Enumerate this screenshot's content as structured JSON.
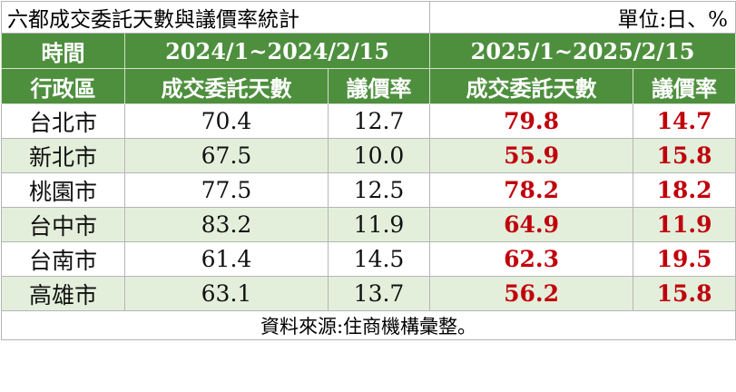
{
  "title": "六都成交委託天數與議價率統計",
  "unit": "單位:日、%",
  "header1": {
    "time": "時間",
    "period_a": "2024/1~2024/2/15",
    "period_b": "2025/1~2025/2/15"
  },
  "header2": {
    "district": "行政區",
    "days_a": "成交委託天數",
    "rate_a": "議價率",
    "days_b": "成交委託天數",
    "rate_b": "議價率"
  },
  "rows": [
    {
      "district": "台北市",
      "days_a": "70.4",
      "rate_a": "12.7",
      "days_b": "79.8",
      "rate_b": "14.7"
    },
    {
      "district": "新北市",
      "days_a": "67.5",
      "rate_a": "10.0",
      "days_b": "55.9",
      "rate_b": "15.8"
    },
    {
      "district": "桃園市",
      "days_a": "77.5",
      "rate_a": "12.5",
      "days_b": "78.2",
      "rate_b": "18.2"
    },
    {
      "district": "台中市",
      "days_a": "83.2",
      "rate_a": "11.9",
      "days_b": "64.9",
      "rate_b": "11.9"
    },
    {
      "district": "台南市",
      "days_a": "61.4",
      "rate_a": "14.5",
      "days_b": "62.3",
      "rate_b": "19.5"
    },
    {
      "district": "高雄市",
      "days_a": "63.1",
      "rate_a": "13.7",
      "days_b": "56.2",
      "rate_b": "15.8"
    }
  ],
  "source": "資料來源:住商機構彙整。",
  "colors": {
    "header_green": "#4e8f3e",
    "alt_row_green": "#e3efdb",
    "highlight_red": "#c0000b"
  }
}
